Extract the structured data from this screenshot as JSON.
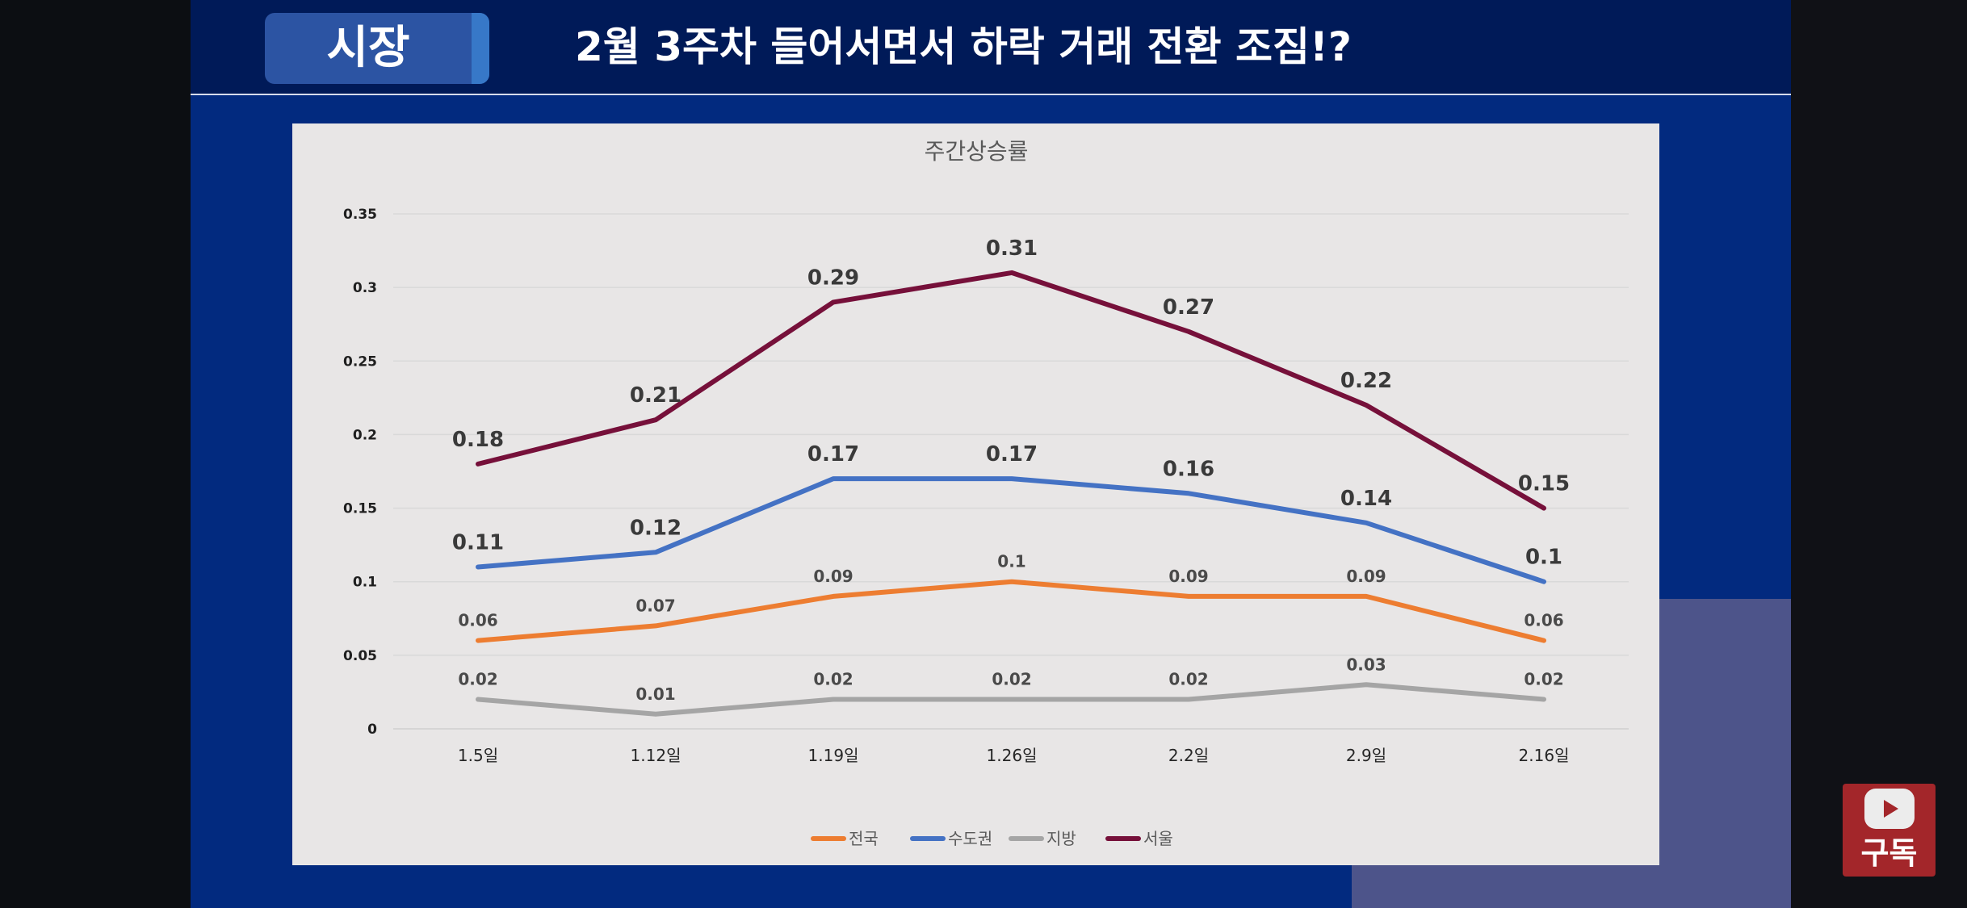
{
  "header": {
    "badge": "시장",
    "title": "2월 3주차 들어서면서 하락 거래  전환 조짐!?"
  },
  "subscribe": {
    "label": "구독",
    "icon": "youtube-play-icon"
  },
  "colors": {
    "header_bg": "#001a58",
    "slide_bg": "#022a7f",
    "chart_bg": "#e8e6e6",
    "national": "#ed7d31",
    "capital": "#4472c4",
    "regional": "#a5a5a5",
    "seoul": "#76103a"
  },
  "chart_data": {
    "type": "line",
    "title": "주간상승률",
    "xlabel": "",
    "ylabel": "",
    "categories": [
      "1.5일",
      "1.12일",
      "1.19일",
      "1.26일",
      "2.2일",
      "2.9일",
      "2.16일"
    ],
    "ylim": [
      0,
      0.35
    ],
    "yticks": [
      "0",
      "0.05",
      "0.1",
      "0.15",
      "0.2",
      "0.25",
      "0.3",
      "0.35"
    ],
    "grid": true,
    "legend_position": "bottom",
    "series": [
      {
        "name": "전국",
        "color": "#ed7d31",
        "values": [
          0.06,
          0.07,
          0.09,
          0.1,
          0.09,
          0.09,
          0.06
        ]
      },
      {
        "name": "수도권",
        "color": "#4472c4",
        "values": [
          0.11,
          0.12,
          0.17,
          0.17,
          0.16,
          0.14,
          0.1
        ]
      },
      {
        "name": "지방",
        "color": "#a5a5a5",
        "values": [
          0.02,
          0.01,
          0.02,
          0.02,
          0.02,
          0.03,
          0.02
        ]
      },
      {
        "name": "서울",
        "color": "#76103a",
        "values": [
          0.18,
          0.21,
          0.29,
          0.31,
          0.27,
          0.22,
          0.15
        ]
      }
    ]
  }
}
